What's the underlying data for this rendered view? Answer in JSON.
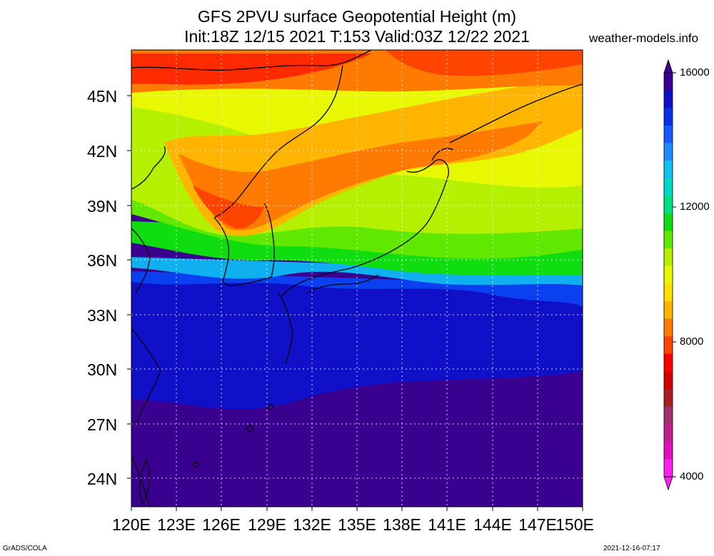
{
  "title_line1": "GFS 2PVU surface Geopotential Height (m)",
  "title_line2": "Init:18Z 12/15 2021 T:153 Valid:03Z 12/22 2021",
  "site": "weather-models.info",
  "lat_labels": [
    "45N",
    "42N",
    "39N",
    "36N",
    "33N",
    "30N",
    "27N",
    "24N"
  ],
  "lon_labels": [
    "120E",
    "123E",
    "126E",
    "129E",
    "132E",
    "135E",
    "138E",
    "141E",
    "144E",
    "147E",
    "150E"
  ],
  "colorbar": {
    "labels": [
      "16000",
      "12000",
      "8000",
      "4000"
    ],
    "colors": [
      "#3a0090",
      "#1010c8",
      "#0a30e8",
      "#1858ff",
      "#1c8cff",
      "#10c0f0",
      "#00d8c8",
      "#00e080",
      "#10dd10",
      "#60e800",
      "#b4f000",
      "#e8f800",
      "#ffe000",
      "#ffb400",
      "#ff7a00",
      "#ff4400",
      "#ff0000",
      "#d40000",
      "#a82020",
      "#a03070",
      "#c02090",
      "#e010c0",
      "#ff20f0"
    ]
  },
  "footer_left": "GrADS/COLA",
  "footer_right": "2021-12-16-07:17"
}
